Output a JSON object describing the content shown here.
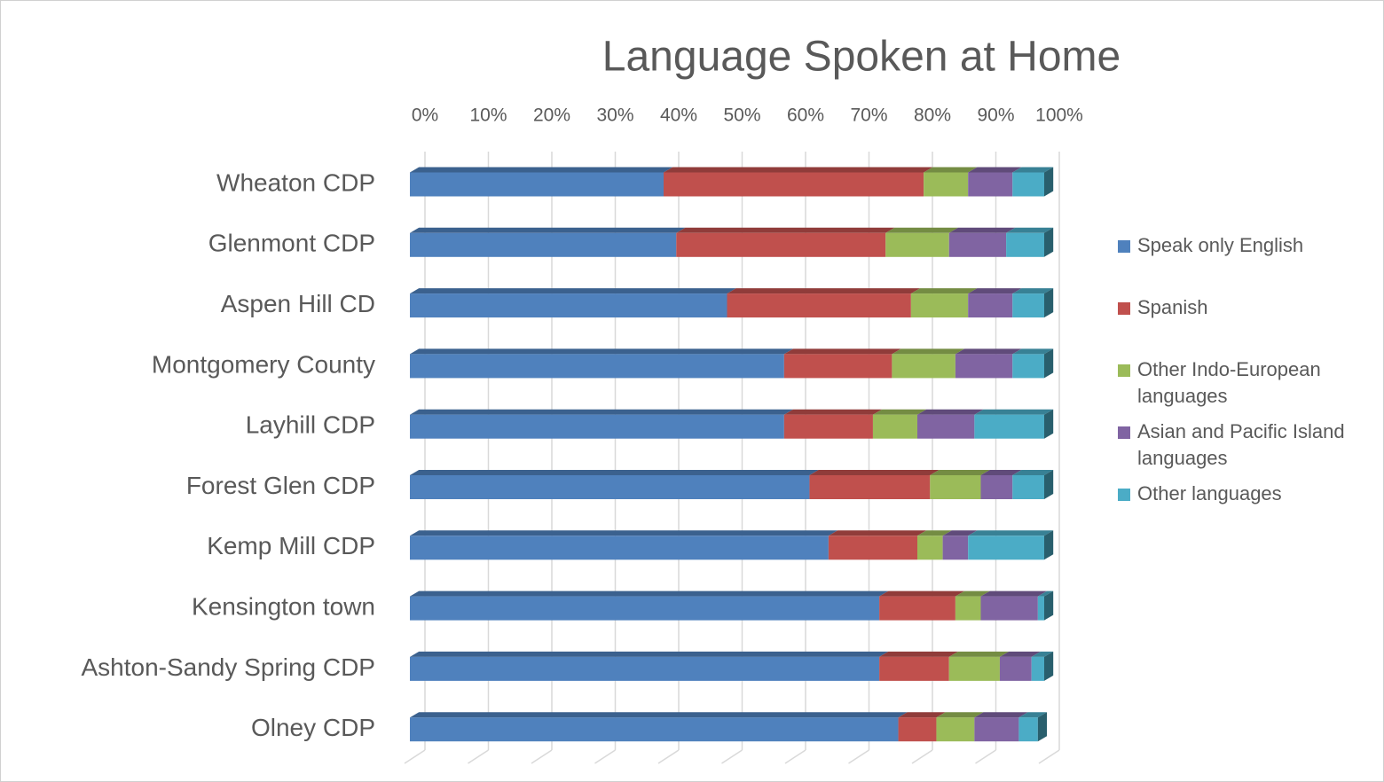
{
  "chart_data": {
    "type": "stacked-bar-horizontal-100",
    "title": "Language Spoken at Home",
    "categories": [
      "Wheaton CDP",
      "Glenmont CDP",
      "Aspen Hill CD",
      "Montgomery County",
      "Layhill CDP",
      "Forest Glen CDP",
      "Kemp Mill CDP",
      "Kensington town",
      "Ashton-Sandy Spring CDP",
      "Olney CDP"
    ],
    "series": [
      {
        "name": "Speak only English",
        "color": "#4f81bd",
        "values": [
          40,
          42,
          50,
          59,
          59,
          63,
          66,
          74,
          74,
          77
        ]
      },
      {
        "name": "Spanish",
        "color": "#c0504d",
        "values": [
          41,
          33,
          29,
          17,
          14,
          19,
          14,
          12,
          11,
          6
        ]
      },
      {
        "name": "Other Indo-European languages",
        "color": "#9bbb59",
        "values": [
          7,
          10,
          9,
          10,
          7,
          8,
          4,
          4,
          8,
          6
        ]
      },
      {
        "name": "Asian and Pacific Island languages",
        "color": "#8064a2",
        "values": [
          7,
          9,
          7,
          9,
          9,
          5,
          4,
          9,
          5,
          7
        ]
      },
      {
        "name": "Other languages",
        "color": "#4bacc6",
        "values": [
          5,
          6,
          5,
          5,
          11,
          5,
          12,
          1,
          2,
          3
        ]
      }
    ],
    "xlim": [
      0,
      100
    ],
    "xticks": [
      {
        "value": 0,
        "label": "0%"
      },
      {
        "value": 10,
        "label": "10%"
      },
      {
        "value": 20,
        "label": "20%"
      },
      {
        "value": 30,
        "label": "30%"
      },
      {
        "value": 40,
        "label": "40%"
      },
      {
        "value": 50,
        "label": "50%"
      },
      {
        "value": 60,
        "label": "60%"
      },
      {
        "value": 70,
        "label": "70%"
      },
      {
        "value": 80,
        "label": "80%"
      },
      {
        "value": 90,
        "label": "90%"
      },
      {
        "value": 100,
        "label": "100%"
      }
    ],
    "grid": true,
    "legend": "right"
  }
}
